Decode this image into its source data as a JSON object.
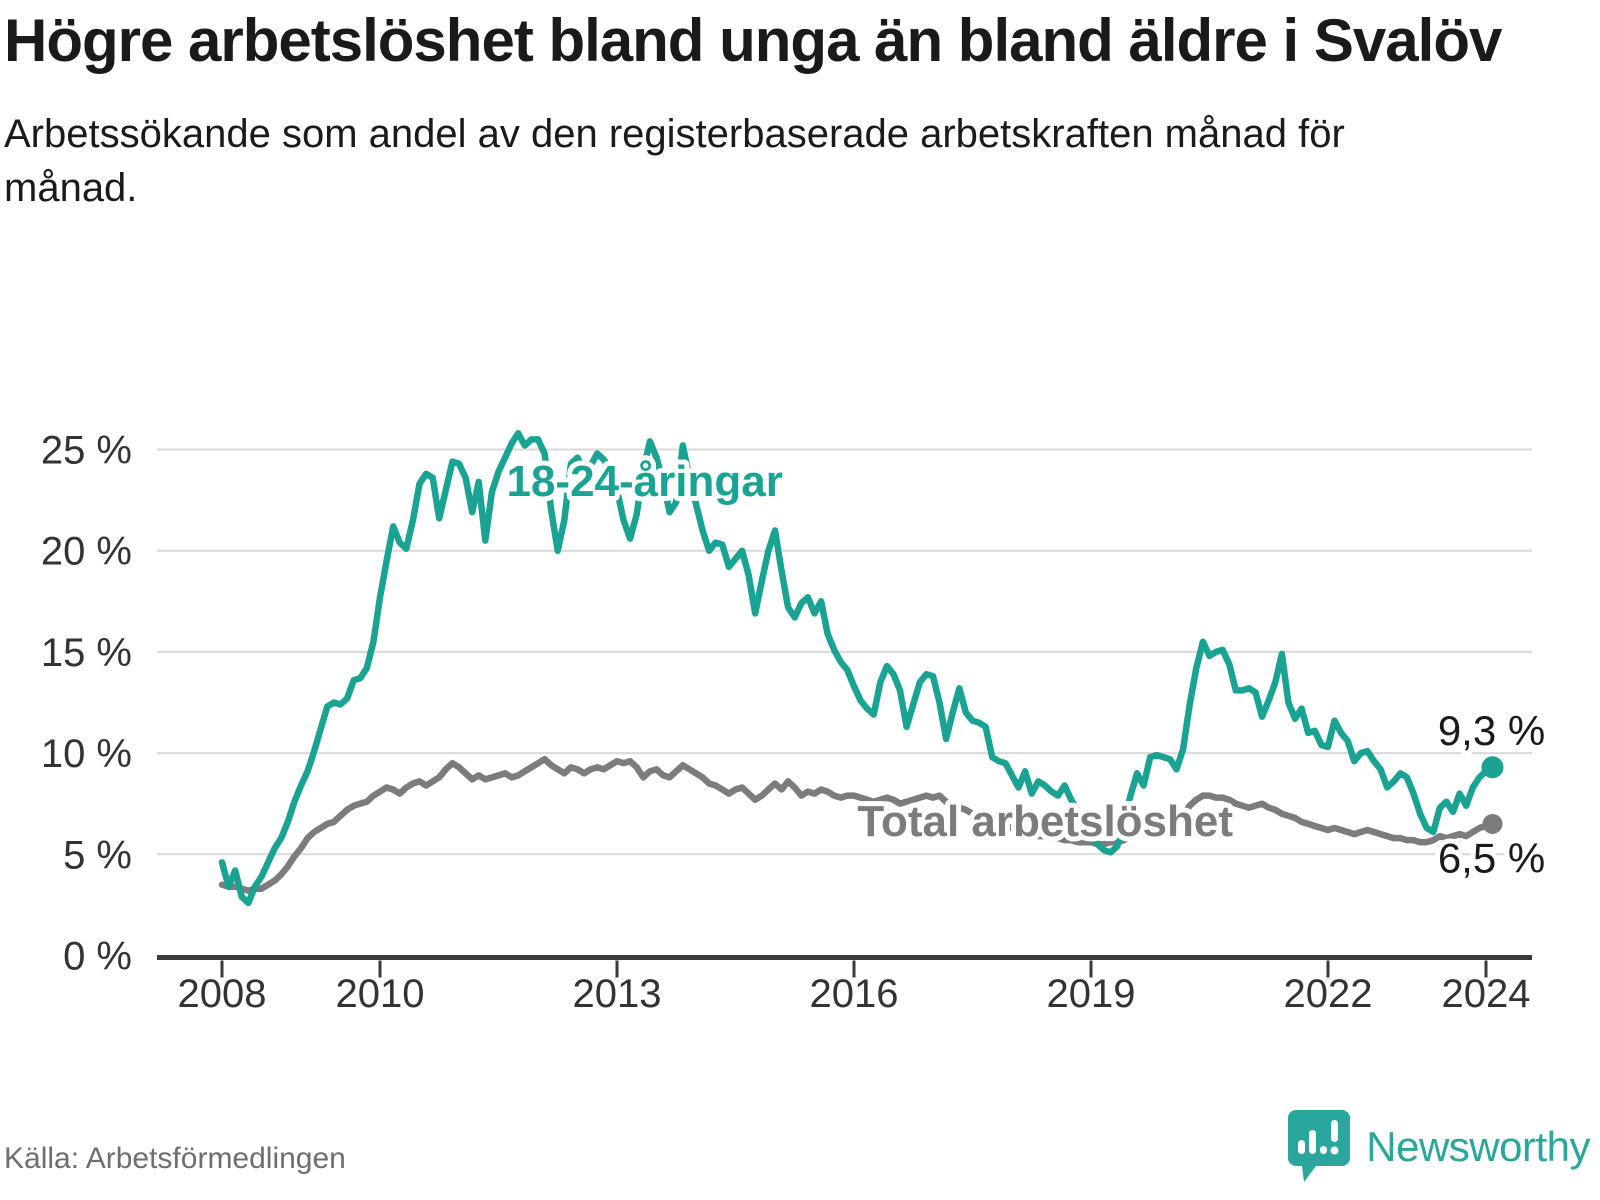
{
  "page": {
    "title": "Högre arbetslöshet bland unga än bland äldre i Svalöv",
    "subtitle": "Arbetssökande som andel av den registerbaserade arbetskraften månad för månad.",
    "source": "Källa: Arbetsförmedlingen",
    "brand": "Newsworthy"
  },
  "colors": {
    "accent": "#1aa392",
    "gray_series": "#7c7c7c",
    "grid": "#d9d9d9",
    "axis": "#3a3a3a",
    "tick_text": "#333333",
    "title_text": "#1a1a1a",
    "source_text": "#6e6e6e",
    "logo": "#2aa69c",
    "halo": "#ffffff"
  },
  "chart_data": {
    "type": "line",
    "unit": "%",
    "frequency": "monthly",
    "x_start": "2008-01",
    "x_end": "2024-02",
    "x_ticks": [
      2008,
      2010,
      2013,
      2016,
      2019,
      2022,
      2024
    ],
    "y_ticks": [
      0,
      5,
      10,
      15,
      20,
      25
    ],
    "y_tick_labels": [
      "0 %",
      "5 %",
      "10 %",
      "15 %",
      "20 %",
      "25 %"
    ],
    "ylim": [
      0,
      26.5
    ],
    "grid": "horizontal",
    "legend": "inline-labels",
    "series": [
      {
        "name": "18-24-åringar",
        "color_key": "accent",
        "end_label": "9,3 %",
        "end_value": 9.3,
        "values": [
          4.6,
          3.4,
          4.2,
          2.9,
          2.6,
          3.4,
          3.9,
          4.6,
          5.3,
          5.8,
          6.6,
          7.6,
          8.4,
          9.1,
          10.1,
          11.2,
          12.3,
          12.5,
          12.4,
          12.7,
          13.6,
          13.7,
          14.2,
          15.5,
          17.7,
          19.5,
          21.2,
          20.4,
          20.1,
          21.5,
          23.3,
          23.8,
          23.6,
          21.6,
          23.0,
          24.4,
          24.3,
          23.6,
          21.9,
          23.4,
          20.5,
          22.9,
          23.9,
          24.6,
          25.3,
          25.8,
          25.2,
          25.5,
          25.5,
          24.8,
          22.0,
          20.0,
          21.5,
          24.3,
          24.6,
          23.9,
          24.2,
          24.8,
          24.5,
          24.0,
          23.0,
          21.5,
          20.6,
          21.8,
          24.0,
          25.4,
          24.6,
          23.4,
          21.9,
          22.4,
          25.2,
          23.6,
          22.3,
          21.0,
          20.0,
          20.4,
          20.3,
          19.2,
          19.6,
          20.0,
          18.8,
          16.9,
          18.5,
          20.0,
          21.0,
          19.0,
          17.2,
          16.7,
          17.4,
          17.7,
          16.9,
          17.5,
          15.9,
          15.1,
          14.5,
          14.1,
          13.3,
          12.6,
          12.2,
          11.9,
          13.5,
          14.3,
          13.9,
          13.1,
          11.3,
          12.4,
          13.5,
          13.9,
          13.8,
          12.5,
          10.7,
          12.0,
          13.2,
          12.0,
          11.6,
          11.5,
          11.3,
          9.8,
          9.6,
          9.5,
          8.9,
          8.3,
          9.1,
          8.0,
          8.6,
          8.4,
          8.1,
          7.9,
          8.4,
          7.7,
          7.1,
          6.6,
          6.0,
          5.5,
          5.2,
          5.1,
          5.4,
          6.6,
          7.9,
          9.0,
          8.4,
          9.8,
          9.9,
          9.8,
          9.7,
          9.2,
          10.2,
          12.4,
          14.2,
          15.5,
          14.8,
          15.0,
          15.1,
          14.4,
          13.1,
          13.1,
          13.2,
          13.0,
          11.8,
          12.6,
          13.5,
          14.9,
          12.5,
          11.7,
          12.2,
          11.0,
          11.1,
          10.4,
          10.3,
          11.6,
          11.0,
          10.6,
          9.6,
          10.0,
          10.1,
          9.6,
          9.2,
          8.3,
          8.6,
          9.0,
          8.8,
          8.0,
          7.0,
          6.3,
          6.1,
          7.3,
          7.6,
          7.1,
          8.0,
          7.4,
          8.3,
          8.8,
          9.1,
          9.3
        ]
      },
      {
        "name": "Total arbetslöshet",
        "color_key": "gray_series",
        "end_label": "6,5 %",
        "end_value": 6.5,
        "values": [
          3.5,
          3.4,
          3.4,
          3.3,
          3.2,
          3.3,
          3.3,
          3.5,
          3.7,
          4.0,
          4.4,
          4.9,
          5.3,
          5.8,
          6.1,
          6.3,
          6.5,
          6.6,
          6.9,
          7.2,
          7.4,
          7.5,
          7.6,
          7.9,
          8.1,
          8.3,
          8.2,
          8.0,
          8.3,
          8.5,
          8.6,
          8.4,
          8.6,
          8.8,
          9.2,
          9.5,
          9.3,
          9.0,
          8.7,
          8.9,
          8.7,
          8.8,
          8.9,
          9.0,
          8.8,
          8.9,
          9.1,
          9.3,
          9.5,
          9.7,
          9.4,
          9.2,
          9.0,
          9.3,
          9.2,
          9.0,
          9.2,
          9.3,
          9.2,
          9.4,
          9.6,
          9.5,
          9.6,
          9.3,
          8.8,
          9.1,
          9.2,
          8.9,
          8.8,
          9.1,
          9.4,
          9.2,
          9.0,
          8.8,
          8.5,
          8.4,
          8.2,
          8.0,
          8.2,
          8.3,
          8.0,
          7.7,
          7.9,
          8.2,
          8.5,
          8.2,
          8.6,
          8.3,
          7.9,
          8.1,
          8.0,
          8.2,
          8.1,
          7.9,
          7.8,
          7.9,
          7.9,
          7.8,
          7.7,
          7.6,
          7.7,
          7.8,
          7.7,
          7.5,
          7.6,
          7.7,
          7.8,
          7.9,
          7.8,
          7.9,
          7.6,
          7.4,
          7.3,
          7.2,
          7.0,
          6.9,
          6.8,
          6.6,
          6.5,
          6.4,
          6.3,
          6.2,
          6.1,
          6.0,
          5.9,
          5.9,
          5.8,
          5.8,
          5.7,
          5.7,
          5.6,
          5.6,
          5.6,
          5.5,
          5.5,
          5.6,
          5.6,
          5.7,
          5.9,
          6.0,
          6.1,
          6.3,
          6.4,
          6.5,
          6.6,
          6.6,
          6.9,
          7.4,
          7.7,
          7.9,
          7.9,
          7.8,
          7.8,
          7.7,
          7.5,
          7.4,
          7.3,
          7.4,
          7.5,
          7.3,
          7.2,
          7.0,
          6.9,
          6.8,
          6.6,
          6.5,
          6.4,
          6.3,
          6.2,
          6.3,
          6.2,
          6.1,
          6.0,
          6.1,
          6.2,
          6.1,
          6.0,
          5.9,
          5.8,
          5.8,
          5.7,
          5.7,
          5.6,
          5.6,
          5.7,
          5.9,
          5.8,
          5.9,
          6.0,
          5.9,
          6.1,
          6.3,
          6.4,
          6.5
        ]
      }
    ],
    "annotations": [
      {
        "role": "series-label-youth",
        "text": "18-24-åringar",
        "x_year": 2013.35,
        "value": 22.7,
        "color_key": "accent",
        "bold": true,
        "size": 44
      },
      {
        "role": "series-label-total",
        "text": "Total arbetslöshet",
        "x_year": 2018.42,
        "value": 5.9,
        "color_key": "gray_series",
        "bold": true,
        "size": 44
      },
      {
        "role": "end-value-youth",
        "text": "9,3 %",
        "x_year": 2024.07,
        "value": 10.4,
        "color_key": "title_text",
        "bold": false,
        "size": 42
      },
      {
        "role": "end-value-total",
        "text": "6,5 %",
        "x_year": 2024.07,
        "value": 4.1,
        "color_key": "title_text",
        "bold": false,
        "size": 42
      }
    ]
  }
}
